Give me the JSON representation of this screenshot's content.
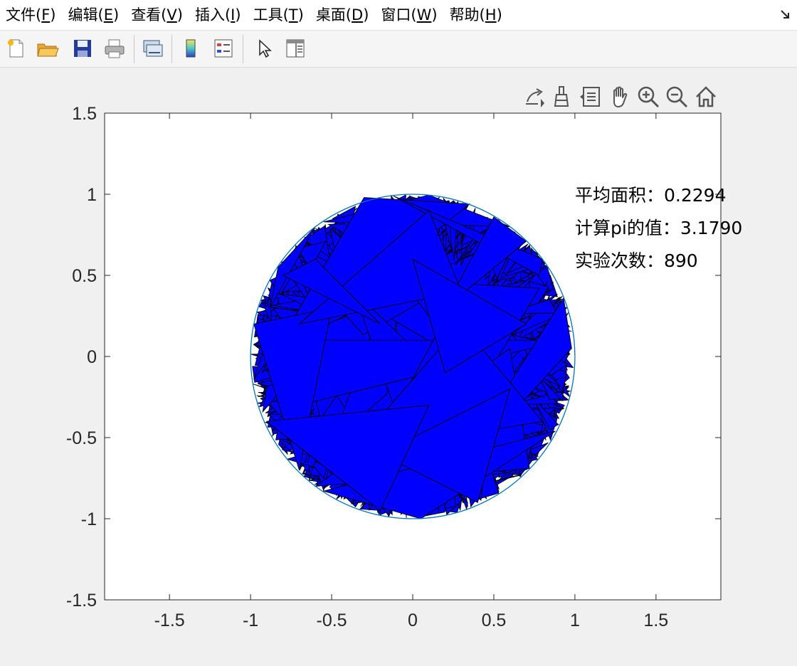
{
  "menu": {
    "items": [
      {
        "name": "menu-file",
        "label": "文件(",
        "acc": "F",
        "tail": ")"
      },
      {
        "name": "menu-edit",
        "label": "编辑(",
        "acc": "E",
        "tail": ")"
      },
      {
        "name": "menu-view",
        "label": "查看(",
        "acc": "V",
        "tail": ")"
      },
      {
        "name": "menu-insert",
        "label": "插入(",
        "acc": "I",
        "tail": ")"
      },
      {
        "name": "menu-tools",
        "label": "工具(",
        "acc": "T",
        "tail": ")"
      },
      {
        "name": "menu-desktop",
        "label": "桌面(",
        "acc": "D",
        "tail": ")"
      },
      {
        "name": "menu-window",
        "label": "窗口(",
        "acc": "W",
        "tail": ")"
      },
      {
        "name": "menu-help",
        "label": "帮助(",
        "acc": "H",
        "tail": ")"
      }
    ]
  },
  "toolbar": {
    "buttons": [
      "new-figure-icon",
      "open-file-icon",
      "save-icon",
      "print-icon",
      "link-plot-icon",
      "insert-colorbar-icon",
      "insert-legend-icon",
      "edit-pointer-icon",
      "property-inspector-icon"
    ]
  },
  "axes_toolbar": {
    "buttons": [
      "export-icon",
      "brush-icon",
      "data-tips-icon",
      "pan-hand-icon",
      "zoom-in-icon",
      "zoom-out-icon",
      "home-restore-icon"
    ]
  },
  "annotations": {
    "avg_area": "平均面积：0.2294",
    "pi_value": "计算pi的值：3.1790",
    "trials": "实验次数：890"
  },
  "chart_data": {
    "type": "scatter",
    "xlim": [
      -1.9,
      1.9
    ],
    "ylim": [
      -1.5,
      1.5
    ],
    "xticks": [
      -1.5,
      -1,
      -0.5,
      0,
      0.5,
      1,
      1.5
    ],
    "xtick_labels": [
      "-1.5",
      "-1",
      "-0.5",
      "0",
      "0.5",
      "1",
      "1.5"
    ],
    "yticks": [
      -1.5,
      -1,
      -0.5,
      0,
      0.5,
      1,
      1.5
    ],
    "ytick_labels": [
      "-1.5",
      "-1",
      "-0.5",
      "0",
      "0.5",
      "1",
      "1.5"
    ],
    "grid": false,
    "circle": {
      "center": [
        0,
        0
      ],
      "radius": 1,
      "color": "#0072BD"
    },
    "triangle_fill": "#0000FF",
    "triangle_edge": "#000000",
    "triangle_count": 890,
    "average_area": 0.2294,
    "pi_estimate": 3.179,
    "triangles": [
      [
        [
          0.1,
          0.995
        ],
        [
          -0.55,
          0.83
        ],
        [
          0.6,
          0.8
        ]
      ],
      [
        [
          -0.28,
          0.8
        ],
        [
          -0.92,
          0.0
        ],
        [
          -0.12,
          0.4
        ]
      ],
      [
        [
          -0.93,
          -0.1
        ],
        [
          -0.3,
          0.98
        ],
        [
          0.35,
          0.94
        ]
      ],
      [
        [
          -0.78,
          -0.32
        ],
        [
          -0.9,
          0.1
        ],
        [
          0.93,
          0.1
        ]
      ],
      [
        [
          0.62,
          0.69
        ],
        [
          0.05,
          -0.5
        ],
        [
          0.2,
          -0.2
        ]
      ],
      [
        [
          -0.33,
          -0.75
        ],
        [
          0.53,
          0.85
        ],
        [
          -0.15,
          -0.98
        ]
      ],
      [
        [
          -0.12,
          0.99
        ],
        [
          0.8,
          0.6
        ],
        [
          0.78,
          0.5
        ]
      ],
      [
        [
          0.3,
          0.45
        ],
        [
          0.78,
          0.42
        ],
        [
          0.35,
          -0.3
        ]
      ],
      [
        [
          0.72,
          -0.69
        ],
        [
          0.6,
          0.05
        ],
        [
          -0.6,
          -0.8
        ]
      ],
      [
        [
          0.93,
          0.36
        ],
        [
          0.98,
          0.05
        ],
        [
          0.2,
          -0.8
        ]
      ],
      [
        [
          -0.55,
          -0.83
        ],
        [
          0.88,
          -0.46
        ],
        [
          0.05,
          -1.0
        ]
      ],
      [
        [
          -0.83,
          0.55
        ],
        [
          -0.6,
          0.8
        ],
        [
          -0.88,
          0.3
        ]
      ],
      [
        [
          -0.98,
          0.2
        ],
        [
          -0.7,
          -0.7
        ],
        [
          -0.5,
          0.3
        ]
      ],
      [
        [
          0.5,
          0.86
        ],
        [
          0.2,
          0.3
        ],
        [
          0.7,
          0.71
        ]
      ],
      [
        [
          -0.4,
          -0.6
        ],
        [
          0.3,
          0.2
        ],
        [
          0.8,
          -0.4
        ]
      ],
      [
        [
          -0.7,
          0.2
        ],
        [
          0.1,
          0.9
        ],
        [
          0.3,
          0.4
        ]
      ],
      [
        [
          0.4,
          -0.9
        ],
        [
          -0.2,
          -0.6
        ],
        [
          0.6,
          -0.2
        ]
      ],
      [
        [
          -0.9,
          -0.4
        ],
        [
          -0.2,
          -0.95
        ],
        [
          0.1,
          -0.3
        ]
      ],
      [
        [
          0.0,
          0.6
        ],
        [
          0.7,
          0.2
        ],
        [
          0.2,
          -0.1
        ]
      ],
      [
        [
          -0.6,
          0.6
        ],
        [
          -0.2,
          0.2
        ],
        [
          -0.8,
          0.5
        ]
      ]
    ]
  }
}
